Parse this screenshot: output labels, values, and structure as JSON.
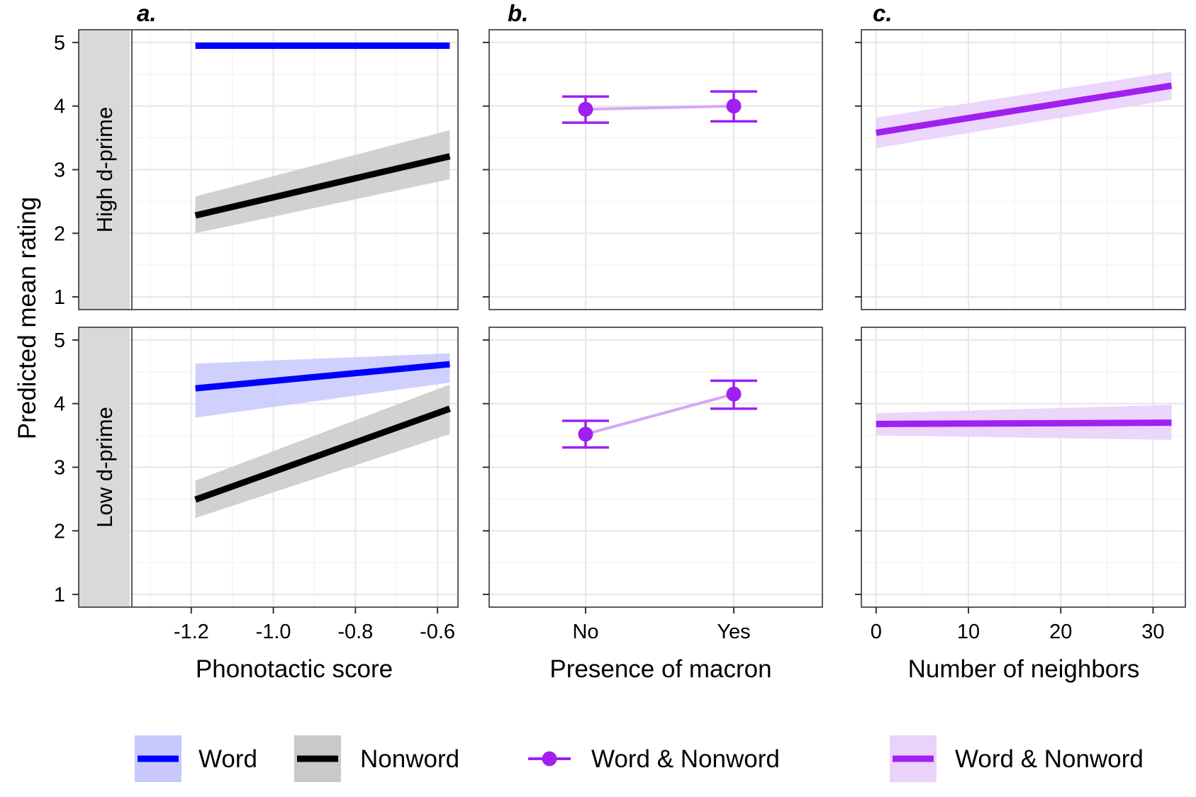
{
  "figure": {
    "y_axis_title": "Predicted mean rating",
    "row_strips": [
      "High d-prime",
      "Low d-prime"
    ],
    "panel_letters": [
      "a.",
      "b.",
      "c."
    ]
  },
  "legend": [
    {
      "label": "Word",
      "kind": "line-ribbon",
      "color": "#0000ff",
      "ribbon": "#c8c8ff"
    },
    {
      "label": "Nonword",
      "kind": "line-ribbon",
      "color": "#000000",
      "ribbon": "#c9c9c9"
    },
    {
      "label": "Word & Nonword",
      "kind": "point-line",
      "color": "#a020f0"
    },
    {
      "label": "Word & Nonword",
      "kind": "line-ribbon",
      "color": "#a020f0",
      "ribbon": "#ead2fb"
    }
  ],
  "chart_data": [
    {
      "type": "line",
      "panel": "a.",
      "xlabel": "Phonotactic score",
      "ylabel": "Predicted mean rating",
      "xlim": [
        -1.35,
        -0.55
      ],
      "ylim": [
        0.8,
        5.2
      ],
      "xticks": [
        -1.2,
        -1.0,
        -0.8,
        -0.6
      ],
      "xtick_labels": [
        "-1.2",
        "-1.0",
        "-0.8",
        "-0.6"
      ],
      "yticks": [
        1,
        2,
        3,
        4,
        5
      ],
      "ytick_labels": [
        "1",
        "2",
        "3",
        "4",
        "5"
      ],
      "grid": true,
      "facets": [
        {
          "strip": "High d-prime",
          "series": [
            {
              "name": "Word",
              "color": "#0000ff",
              "ribbon": "#c8c8ff",
              "x": [
                -1.19,
                -0.57
              ],
              "y": [
                4.95,
                4.95
              ],
              "lower": [
                4.95,
                4.95
              ],
              "upper": [
                4.95,
                4.95
              ]
            },
            {
              "name": "Nonword",
              "color": "#000000",
              "ribbon": "#c9c9c9",
              "x": [
                -1.19,
                -0.57
              ],
              "y": [
                2.28,
                3.21
              ],
              "lower": [
                2.0,
                2.85
              ],
              "upper": [
                2.58,
                3.62
              ]
            }
          ]
        },
        {
          "strip": "Low d-prime",
          "series": [
            {
              "name": "Word",
              "color": "#0000ff",
              "ribbon": "#c8c8ff",
              "x": [
                -1.19,
                -0.57
              ],
              "y": [
                4.24,
                4.62
              ],
              "lower": [
                3.78,
                4.33
              ],
              "upper": [
                4.63,
                4.79
              ]
            },
            {
              "name": "Nonword",
              "color": "#000000",
              "ribbon": "#c9c9c9",
              "x": [
                -1.19,
                -0.57
              ],
              "y": [
                2.49,
                3.92
              ],
              "lower": [
                2.2,
                3.52
              ],
              "upper": [
                2.79,
                4.3
              ]
            }
          ]
        }
      ]
    },
    {
      "type": "scatter",
      "panel": "b.",
      "xlabel": "Presence of macron",
      "categories": [
        "No",
        "Yes"
      ],
      "ylim": [
        0.8,
        5.2
      ],
      "grid": true,
      "facets": [
        {
          "strip": "High d-prime",
          "series": [
            {
              "name": "Word & Nonword",
              "color": "#a020f0",
              "values": [
                3.95,
                4.0
              ],
              "lower": [
                3.74,
                3.76
              ],
              "upper": [
                4.15,
                4.23
              ]
            }
          ]
        },
        {
          "strip": "Low d-prime",
          "series": [
            {
              "name": "Word & Nonword",
              "color": "#a020f0",
              "values": [
                3.52,
                4.15
              ],
              "lower": [
                3.31,
                3.92
              ],
              "upper": [
                3.73,
                4.36
              ]
            }
          ]
        }
      ]
    },
    {
      "type": "line",
      "panel": "c.",
      "xlabel": "Number of neighbors",
      "xlim": [
        -1.6,
        33.5
      ],
      "ylim": [
        0.8,
        5.2
      ],
      "xticks": [
        0,
        10,
        20,
        30
      ],
      "xtick_labels": [
        "0",
        "10",
        "20",
        "30"
      ],
      "grid": true,
      "facets": [
        {
          "strip": "High d-prime",
          "series": [
            {
              "name": "Word & Nonword",
              "color": "#a020f0",
              "ribbon": "#ead2fb",
              "x": [
                0,
                32
              ],
              "y": [
                3.58,
                4.32
              ],
              "lower": [
                3.34,
                4.1
              ],
              "upper": [
                3.82,
                4.54
              ]
            }
          ]
        },
        {
          "strip": "Low d-prime",
          "series": [
            {
              "name": "Word & Nonword",
              "color": "#a020f0",
              "ribbon": "#ead2fb",
              "x": [
                0,
                32
              ],
              "y": [
                3.68,
                3.7
              ],
              "lower": [
                3.5,
                3.43
              ],
              "upper": [
                3.85,
                3.98
              ]
            }
          ]
        }
      ]
    }
  ]
}
